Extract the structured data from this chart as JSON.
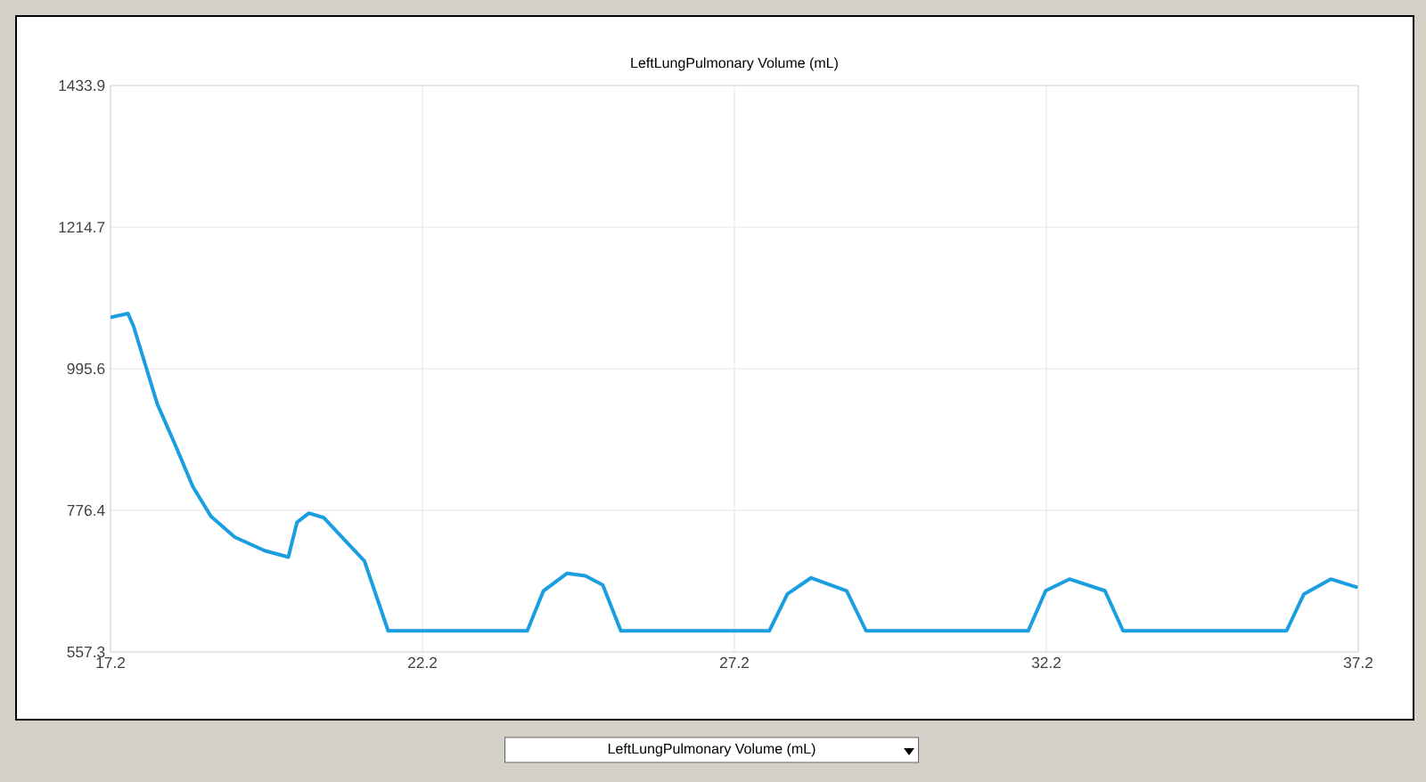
{
  "chart_data": {
    "type": "line",
    "title": "LeftLungPulmonary Volume (mL)",
    "x": [
      17.2,
      17.48,
      17.57,
      17.95,
      18.24,
      18.52,
      18.81,
      19.19,
      19.67,
      20.05,
      20.19,
      20.38,
      20.62,
      20.91,
      21.27,
      21.65,
      23.88,
      24.14,
      24.52,
      24.81,
      25.09,
      25.38,
      27.76,
      28.05,
      28.43,
      29.0,
      29.31,
      31.91,
      32.19,
      32.57,
      33.14,
      33.43,
      36.05,
      36.33,
      36.76,
      37.19
    ],
    "series": [
      {
        "color": "#1b9ee0",
        "values": [
          1075,
          1081,
          1061,
          941,
          877,
          813,
          767,
          735,
          714,
          704,
          758,
          772,
          765,
          735,
          698,
          590,
          590,
          652,
          679,
          675,
          661,
          590,
          590,
          647,
          672,
          652,
          590,
          590,
          652,
          670,
          652,
          590,
          590,
          647,
          670,
          657
        ]
      }
    ],
    "xlim": [
      17.2,
      37.2
    ],
    "xticks": [
      17.2,
      22.2,
      27.2,
      32.2,
      37.2
    ],
    "ylim": [
      557.3,
      1433.9
    ],
    "yticks": [
      557.3,
      776.4,
      995.6,
      1214.7,
      1433.9
    ],
    "grid": true,
    "marker": "none",
    "line_style": "solid",
    "annotations": [
      "LeftLungPulmonary Volume (mL)"
    ]
  }
}
